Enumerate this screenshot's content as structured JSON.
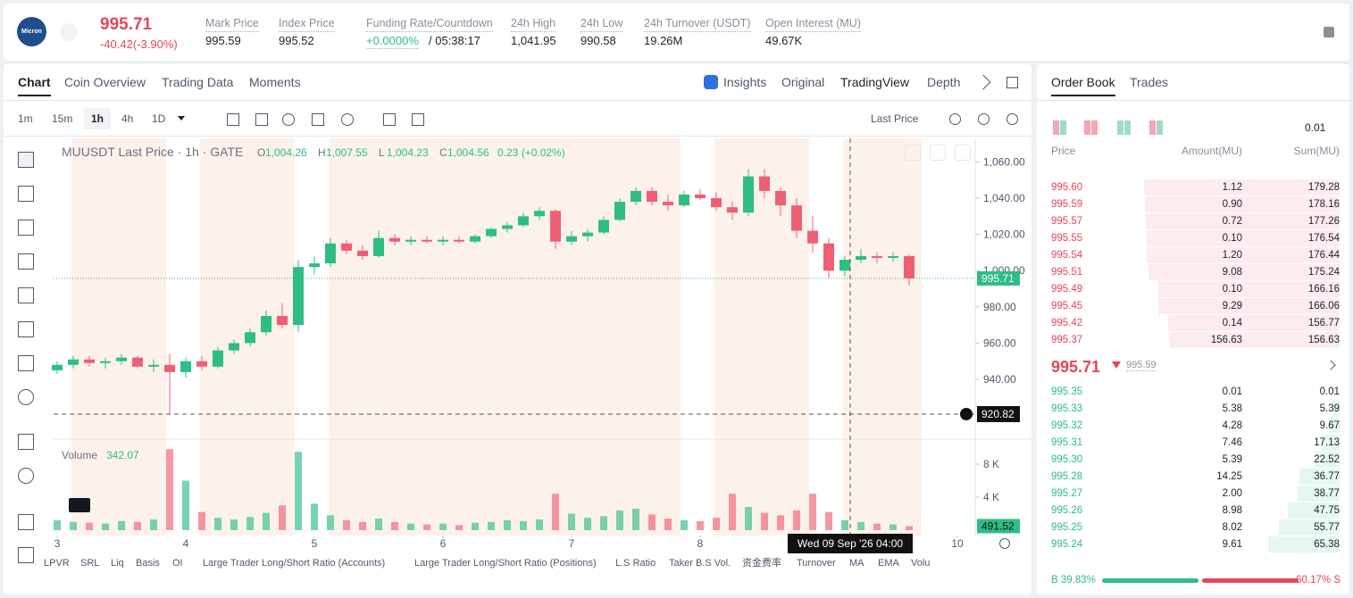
{
  "header": {
    "logo": "Micron",
    "price": "995.71",
    "change": "-40.42(-3.90%)",
    "stats": [
      {
        "label": "Mark Price",
        "value": "995.59"
      },
      {
        "label": "Index Price",
        "value": "995.52"
      },
      {
        "label": "Funding Rate/Countdown",
        "value": "+0.0000%",
        "extra": "/ 05:38:17"
      },
      {
        "label": "24h High",
        "value": "1,041.95"
      },
      {
        "label": "24h Low",
        "value": "990.58"
      },
      {
        "label": "24h Turnover (USDT)",
        "value": "19.26M"
      },
      {
        "label": "Open Interest (MU)",
        "value": "49.67K"
      }
    ]
  },
  "tabs": [
    "Chart",
    "Coin Overview",
    "Trading Data",
    "Moments"
  ],
  "views": [
    "Insights",
    "Original",
    "TradingView",
    "Depth"
  ],
  "intervals": [
    "1m",
    "15m",
    "1h",
    "4h",
    "1D"
  ],
  "price_source": "Last Price",
  "chart_data": {
    "type": "candlestick",
    "legend": {
      "symbol": "MUUSDT Last Price · 1h · GATE",
      "ohlc": [
        {
          "key": "O",
          "value": "1,004.26"
        },
        {
          "key": "H",
          "value": "1,007.55"
        },
        {
          "key": "L",
          "value": "1,004.23"
        },
        {
          "key": "C",
          "value": "1,004.56"
        }
      ],
      "change": "0.23 (+0.02%)"
    },
    "x": [
      3,
      3.125,
      3.25,
      3.375,
      3.5,
      3.625,
      3.75,
      3.875,
      4,
      4.125,
      4.25,
      4.375,
      4.5,
      4.625,
      4.75,
      4.875,
      5,
      5.125,
      5.25,
      5.375,
      5.5,
      5.625,
      5.75,
      5.875,
      6,
      6.125,
      6.25,
      6.375,
      6.5,
      6.625,
      6.75,
      6.875,
      7,
      7.125,
      7.25,
      7.375,
      7.5,
      7.625,
      7.75,
      7.875,
      8,
      8.125,
      8.25,
      8.375,
      8.5,
      8.625,
      8.75,
      8.875,
      9,
      9.125,
      9.25,
      9.375,
      9.5,
      9.625
    ],
    "open": [
      945,
      948,
      951,
      949,
      950,
      952,
      947,
      948,
      944,
      950,
      947,
      956,
      960,
      966,
      975,
      970,
      1002,
      1004,
      1015,
      1011,
      1008,
      1018,
      1016,
      1017,
      1016,
      1017,
      1016,
      1019,
      1023,
      1025,
      1030,
      1033,
      1016,
      1019,
      1021,
      1028,
      1038,
      1044,
      1038,
      1036,
      1042,
      1040,
      1035,
      1032,
      1052,
      1044,
      1036,
      1022,
      1015,
      1000,
      1006,
      1008,
      1007,
      1008
    ],
    "high": [
      950,
      953,
      953,
      952,
      954,
      953,
      951,
      954,
      952,
      953,
      958,
      962,
      968,
      978,
      982,
      1006,
      1008,
      1018,
      1017,
      1014,
      1022,
      1020,
      1019,
      1019,
      1019,
      1019,
      1020,
      1024,
      1027,
      1032,
      1035,
      1034,
      1022,
      1023,
      1030,
      1040,
      1046,
      1046,
      1042,
      1044,
      1045,
      1043,
      1038,
      1056,
      1056,
      1046,
      1040,
      1030,
      1018,
      1008,
      1012,
      1010,
      1010,
      1009
    ],
    "low": [
      943,
      946,
      947,
      946,
      948,
      946,
      944,
      920.82,
      941,
      945,
      946,
      954,
      958,
      964,
      968,
      966,
      998,
      1002,
      1009,
      1006,
      1007,
      1014,
      1014,
      1015,
      1014,
      1015,
      1015,
      1018,
      1021,
      1024,
      1028,
      1012,
      1014,
      1016,
      1020,
      1027,
      1036,
      1036,
      1033,
      1035,
      1039,
      1033,
      1028,
      1030,
      1040,
      1030,
      1018,
      1010,
      996,
      997,
      1004,
      1004,
      1005,
      992
    ],
    "close": [
      948,
      951,
      949,
      950,
      952,
      947,
      948,
      944,
      950,
      947,
      956,
      960,
      966,
      975,
      970,
      1002,
      1004,
      1015,
      1011,
      1008,
      1018,
      1016,
      1017,
      1016,
      1017,
      1016,
      1019,
      1023,
      1025,
      1030,
      1033,
      1016,
      1019,
      1021,
      1028,
      1038,
      1044,
      1038,
      1036,
      1042,
      1040,
      1035,
      1032,
      1052,
      1044,
      1036,
      1022,
      1015,
      1000,
      1006,
      1008,
      1007,
      1008,
      995.71
    ],
    "volume": [
      1.2,
      1,
      0.9,
      0.8,
      1.1,
      1,
      1.3,
      9.8,
      6,
      2.2,
      1.5,
      1.3,
      1.6,
      2.1,
      3,
      9.5,
      3.2,
      1.8,
      1.2,
      1,
      1.4,
      1,
      0.8,
      0.7,
      0.8,
      0.6,
      0.9,
      1,
      1.2,
      1.1,
      1.3,
      4.4,
      2,
      1.5,
      1.7,
      2.4,
      2.6,
      1.9,
      1.4,
      1.2,
      1.1,
      1.5,
      4.4,
      2.8,
      2.1,
      1.8,
      2.4,
      4.4,
      2.2,
      1.2,
      1,
      0.8,
      0.7,
      0.49152
    ],
    "up_color": "#2ebd85",
    "down_color": "#ef5f73",
    "xlim": [
      2.972,
      10.125
    ],
    "xticks": [
      3,
      4,
      5,
      6,
      7,
      8,
      10
    ],
    "ylim": [
      908,
      1073
    ],
    "yticks": [
      {
        "value": 940,
        "label": "940.00"
      },
      {
        "value": 960,
        "label": "960.00"
      },
      {
        "value": 980,
        "label": "980.00"
      },
      {
        "value": 1000,
        "label": "1,000.00"
      },
      {
        "value": 1020,
        "label": "1,020.00"
      },
      {
        "value": 1040,
        "label": "1,040.00"
      },
      {
        "value": 1060,
        "label": "1,060.00"
      }
    ],
    "volume_title": "Volume",
    "volume_value": "342.07",
    "volume_ylim": [
      0,
      10.7
    ],
    "volume_yticks": [
      {
        "value": 4,
        "label": "4 K"
      },
      {
        "value": 8,
        "label": "8 K"
      }
    ],
    "volume_marker": {
      "value": 0.49152,
      "label": "491.52"
    },
    "last_price": 995.71,
    "crosshair": {
      "x": 9.1667,
      "price": 920.82,
      "label": "Wed 09 Sep '26   04:00"
    },
    "indicators": [
      "LPVR",
      "SRL",
      "Liq",
      "Basis",
      "OI",
      "Large Trader Long/Short Ratio (Accounts)",
      "Large Trader Long/Short Ratio (Positions)",
      "L.S Ratio",
      "Taker B.S Vol.",
      "资金费率",
      "Turnover",
      "MA",
      "EMA",
      "Volu"
    ]
  },
  "order_book": {
    "tabs": [
      "Order Book",
      "Trades"
    ],
    "tick": "0.01",
    "columns": [
      "Price",
      "Amount(MU)",
      "Sum(MU)"
    ],
    "asks": [
      [
        "995.60",
        "1.12",
        "179.28"
      ],
      [
        "995.59",
        "0.90",
        "178.16"
      ],
      [
        "995.57",
        "0.72",
        "177.26"
      ],
      [
        "995.55",
        "0.10",
        "176.54"
      ],
      [
        "995.54",
        "1.20",
        "176.44"
      ],
      [
        "995.51",
        "9.08",
        "175.24"
      ],
      [
        "995.49",
        "0.10",
        "166.16"
      ],
      [
        "995.45",
        "9.29",
        "166.06"
      ],
      [
        "995.42",
        "0.14",
        "156.77"
      ],
      [
        "995.37",
        "156.63",
        "156.63"
      ]
    ],
    "mid": {
      "price": "995.71",
      "mark": "995.59"
    },
    "bids": [
      [
        "995.35",
        "0.01",
        "0.01"
      ],
      [
        "995.33",
        "5.38",
        "5.39"
      ],
      [
        "995.32",
        "4.28",
        "9.67"
      ],
      [
        "995.31",
        "7.46",
        "17.13"
      ],
      [
        "995.30",
        "5.39",
        "22.52"
      ],
      [
        "995.28",
        "14.25",
        "36.77"
      ],
      [
        "995.27",
        "2.00",
        "38.77"
      ],
      [
        "995.26",
        "8.98",
        "47.75"
      ],
      [
        "995.25",
        "8.02",
        "55.77"
      ],
      [
        "995.24",
        "9.61",
        "65.38"
      ]
    ],
    "buy_ratio": {
      "value": 39.83,
      "label": "B 39.83%"
    },
    "sell_ratio": {
      "value": 60.17,
      "label": "60.17% S"
    }
  }
}
